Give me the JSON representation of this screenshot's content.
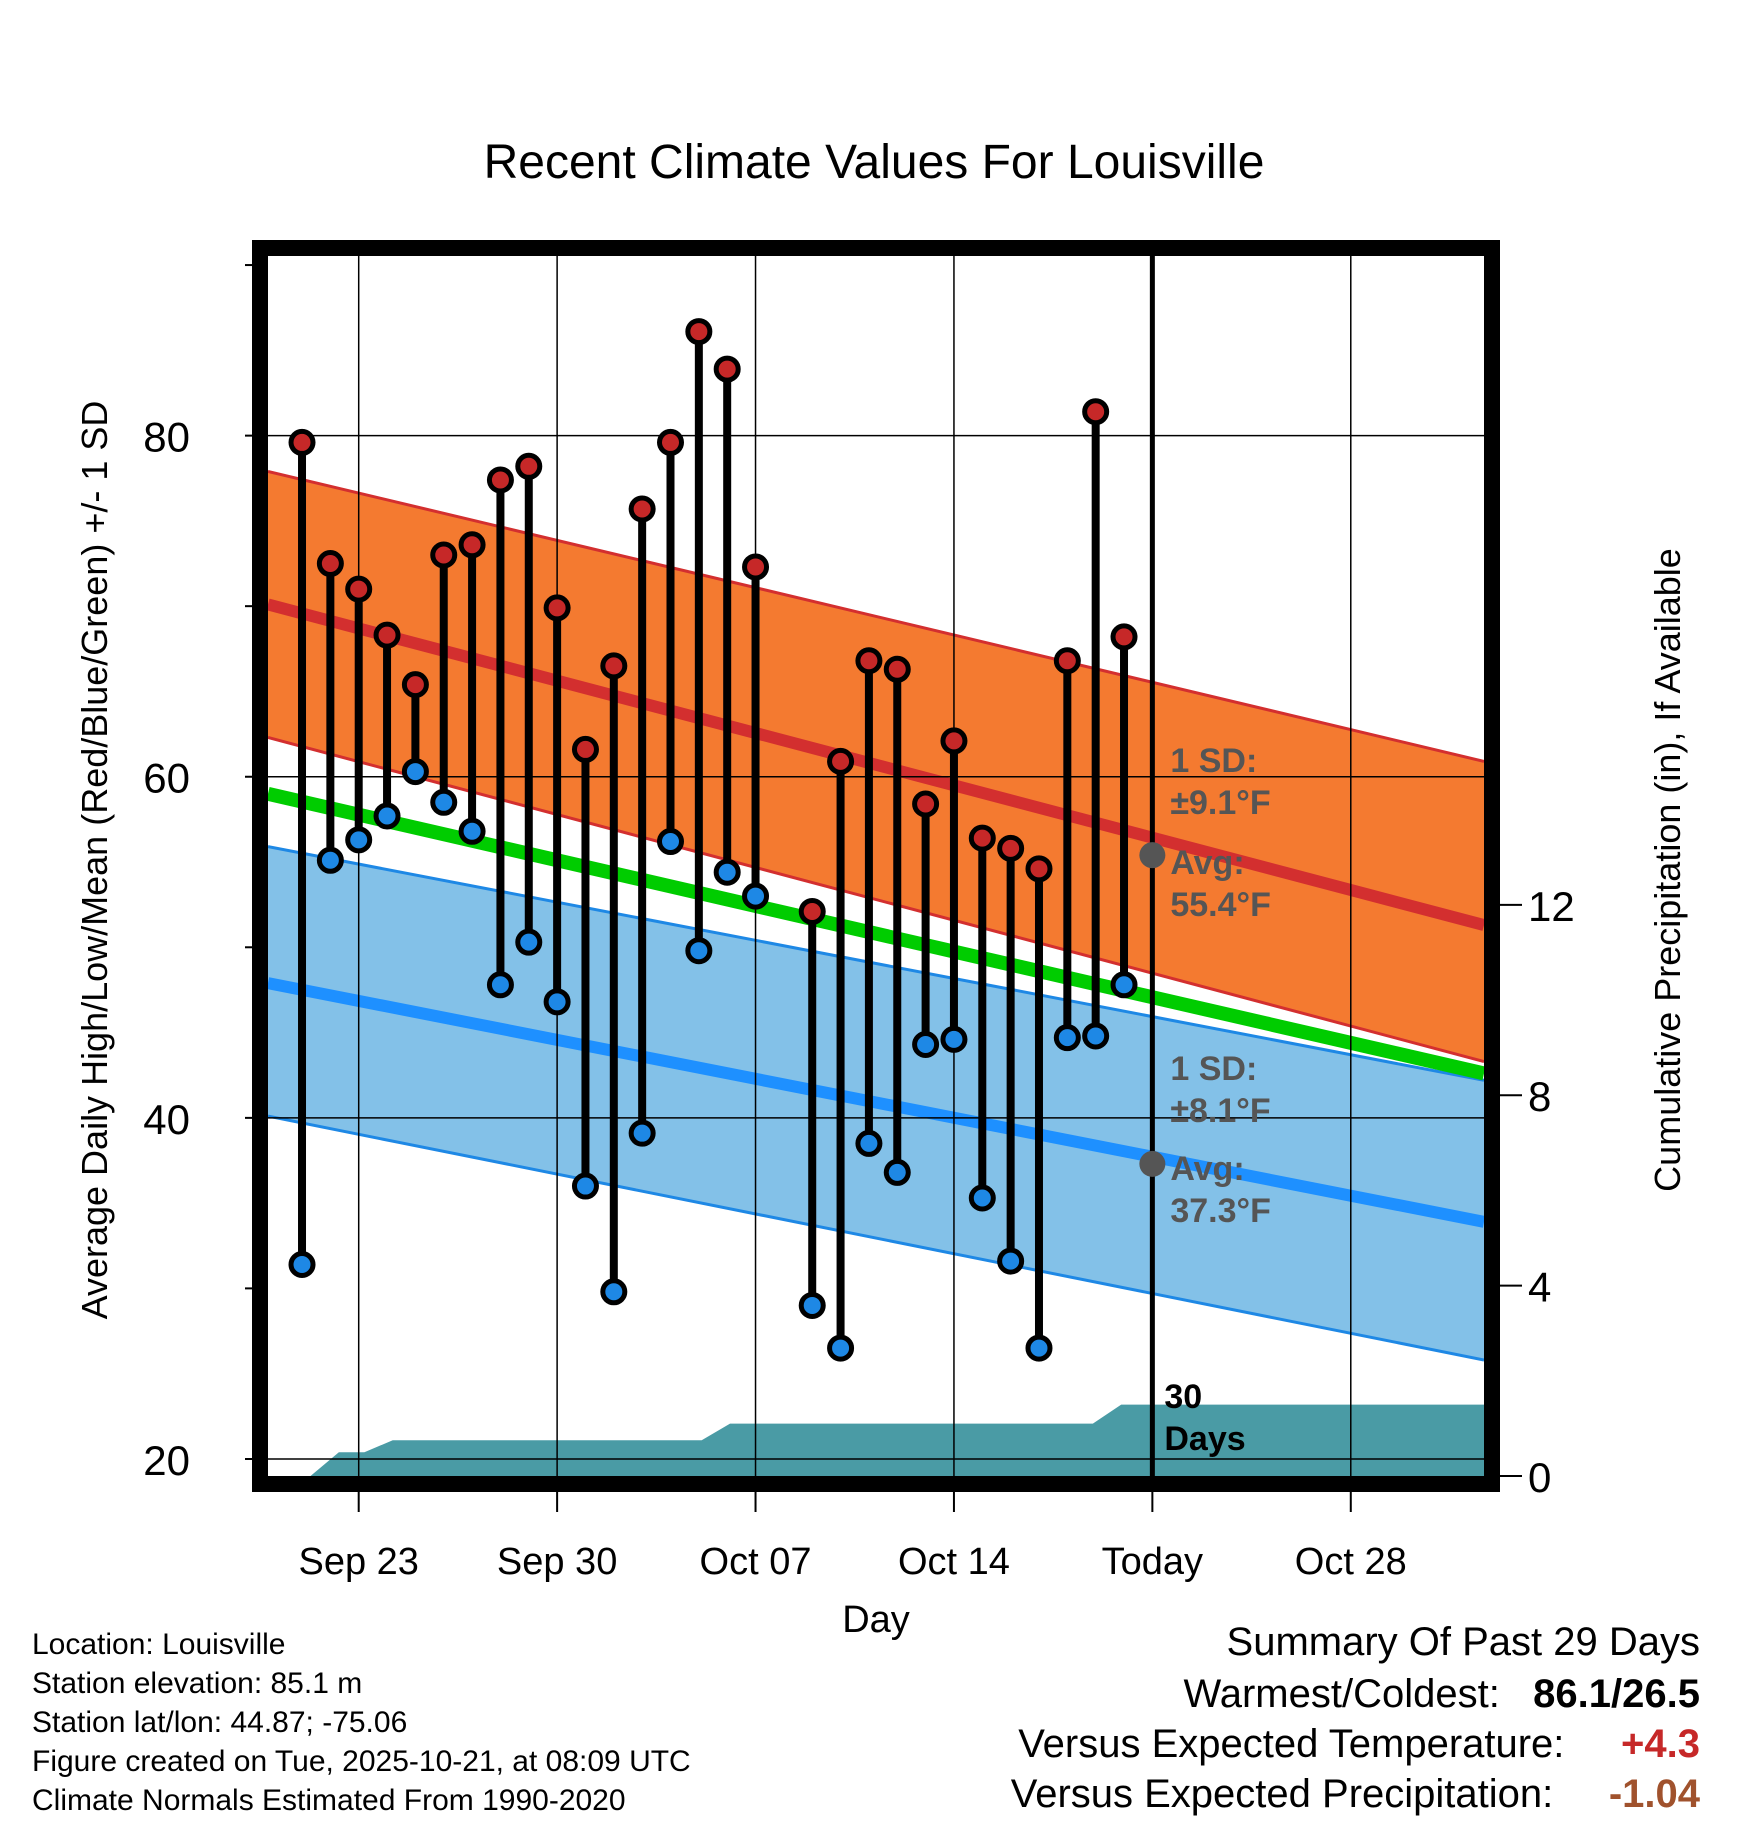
{
  "chart_data": {
    "type": "line",
    "title": "Recent Climate Values For Louisville",
    "xlabel": "Day",
    "ylabel": "Average Daily High/Low/Mean (Red/Blue/Green) +/- 1 SD",
    "y2label": "Cumulative Precipitation (in), If Available",
    "ylim": [
      19,
      91
    ],
    "y_ticks": [
      20,
      40,
      60,
      80
    ],
    "y2lim": [
      0,
      25.8
    ],
    "y2_ticks": [
      0,
      4,
      8,
      12
    ],
    "x_range_days": [
      -31.2,
      11.7
    ],
    "x_ticks": [
      {
        "day": -28,
        "label": "Sep 23"
      },
      {
        "day": -21,
        "label": "Sep 30"
      },
      {
        "day": -14,
        "label": "Oct 07"
      },
      {
        "day": -7,
        "label": "Oct 14"
      },
      {
        "day": 0,
        "label": "Today"
      },
      {
        "day": 7,
        "label": "Oct 28"
      }
    ],
    "normals": {
      "high_mean": [
        70.1,
        51.3
      ],
      "high_upper": [
        77.9,
        60.9
      ],
      "high_lower": [
        62.3,
        43.3
      ],
      "low_mean": [
        47.9,
        33.9
      ],
      "low_upper": [
        55.9,
        42.2
      ],
      "low_lower": [
        40.1,
        25.8
      ],
      "daily_mean": [
        59.0,
        42.6
      ]
    },
    "series": [
      {
        "name": "Daily High",
        "color": "#c62828",
        "x": [
          -30,
          -29,
          -28,
          -27,
          -26,
          -25,
          -24,
          -23,
          -22,
          -21,
          -20,
          -19,
          -18,
          -17,
          -16,
          -15,
          -14,
          -12,
          -11,
          -10,
          -9,
          -8,
          -7,
          -6,
          -5,
          -4,
          -3,
          -2,
          -1
        ],
        "values": [
          79.6,
          72.5,
          71.0,
          68.3,
          65.4,
          73.0,
          73.6,
          77.4,
          78.2,
          69.9,
          61.6,
          66.5,
          75.7,
          79.6,
          86.1,
          83.9,
          72.3,
          52.1,
          60.9,
          66.8,
          66.3,
          58.4,
          62.1,
          56.4,
          55.8,
          54.6,
          66.8,
          81.4,
          68.2
        ]
      },
      {
        "name": "Daily Low",
        "color": "#1e88e5",
        "x": [
          -30,
          -29,
          -28,
          -27,
          -26,
          -25,
          -24,
          -23,
          -22,
          -21,
          -20,
          -19,
          -18,
          -17,
          -16,
          -15,
          -14,
          -12,
          -11,
          -10,
          -9,
          -8,
          -7,
          -6,
          -5,
          -4,
          -3,
          -2,
          -1
        ],
        "values": [
          31.4,
          55.1,
          56.3,
          57.7,
          60.3,
          58.5,
          56.8,
          47.8,
          50.3,
          46.8,
          36.0,
          29.8,
          39.1,
          56.2,
          49.8,
          54.4,
          53.0,
          29.0,
          26.5,
          38.5,
          36.8,
          44.3,
          44.6,
          35.3,
          31.6,
          26.5,
          44.7,
          44.8,
          47.8
        ]
      },
      {
        "name": "Cumulative Precipitation",
        "color": "#4a9ba5",
        "x": [
          -29.7,
          -28.7,
          -27.8,
          -26.8,
          -20.3,
          -15.9,
          -14.9,
          -2.1,
          -1.1,
          11.7
        ],
        "values": [
          0,
          0.5,
          0.5,
          0.75,
          0.75,
          0.75,
          1.1,
          1.1,
          1.5,
          1.5
        ]
      }
    ],
    "annotations": {
      "high_sd": "1 SD:",
      "high_sd_val": "±9.1°F",
      "high_avg": "Avg:",
      "high_avg_val": "55.4°F",
      "low_sd": "1 SD:",
      "low_sd_val": "±8.1°F",
      "low_avg": "Avg:",
      "low_avg_val": "37.3°F",
      "days_num": "30",
      "days_word": "Days",
      "high_avg_value": 55.4,
      "low_avg_value": 37.3
    }
  },
  "footer": {
    "location": "Location: Louisville",
    "elevation": "Station elevation: 85.1 m",
    "latlon": "Station lat/lon: 44.87; -75.06",
    "created": "Figure created on Tue, 2025-10-21, at 08:09 UTC",
    "normals": "Climate Normals Estimated From 1990-2020"
  },
  "summary": {
    "heading": "Summary Of Past 29 Days",
    "warmest_label": "Warmest/Coldest:",
    "warmest_value": "86.1/26.5",
    "temp_label": "Versus Expected Temperature:",
    "temp_value": "+4.3",
    "temp_color": "#c62828",
    "precip_label": "Versus Expected Precipitation:",
    "precip_value": "-1.04",
    "precip_color": "#a0522d"
  }
}
